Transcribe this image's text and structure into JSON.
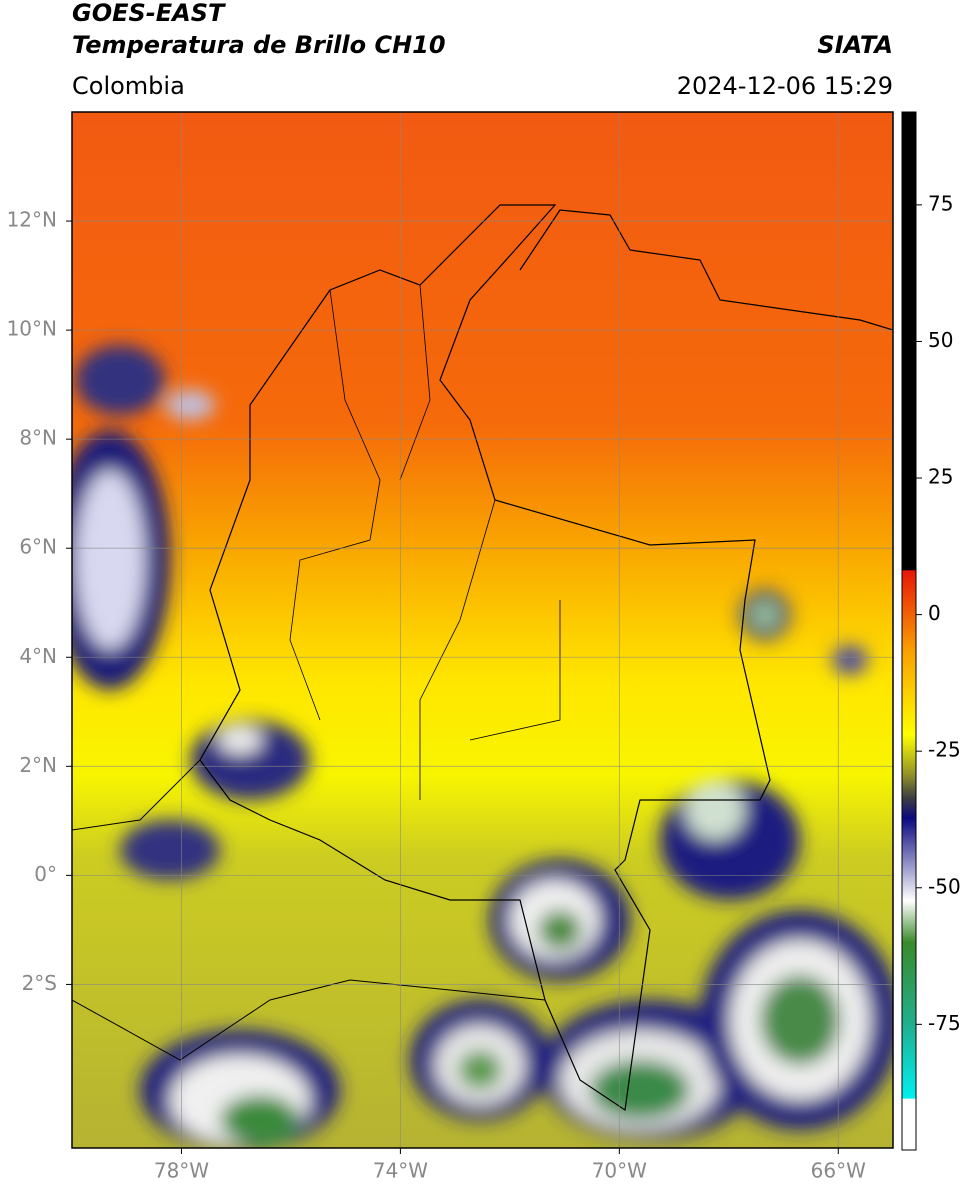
{
  "header": {
    "title": "GOES-EAST",
    "subtitle": "Temperatura de Brillo CH10",
    "source": "SIATA",
    "region": "Colombia",
    "datetime": "2024-12-06 15:29"
  },
  "map": {
    "lonlim": [
      -80,
      -65
    ],
    "latlim": [
      -5,
      14
    ],
    "lat_ticks": [
      {
        "value": 12,
        "label": "12°N"
      },
      {
        "value": 10,
        "label": "10°N"
      },
      {
        "value": 8,
        "label": "8°N"
      },
      {
        "value": 6,
        "label": "6°N"
      },
      {
        "value": 4,
        "label": "4°N"
      },
      {
        "value": 2,
        "label": "2°N"
      },
      {
        "value": 0,
        "label": "0°"
      },
      {
        "value": -2,
        "label": "2°S"
      }
    ],
    "lon_ticks": [
      {
        "value": -78,
        "label": "78°W"
      },
      {
        "value": -74,
        "label": "74°W"
      },
      {
        "value": -70,
        "label": "70°W"
      },
      {
        "value": -66,
        "label": "66°W"
      }
    ],
    "grid": true
  },
  "colorbar": {
    "lim": [
      -98,
      92
    ],
    "ticks": [
      75,
      50,
      25,
      0,
      -25,
      -50,
      -75
    ]
  }
}
